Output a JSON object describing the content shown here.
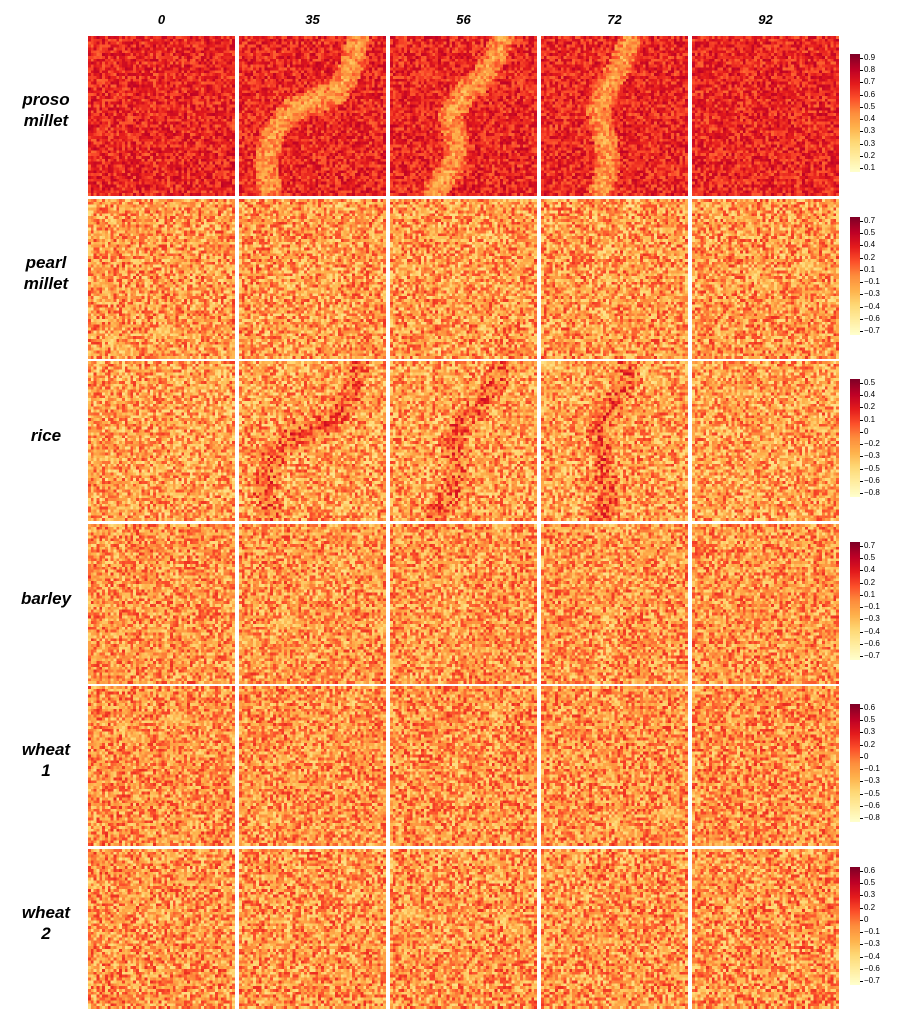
{
  "chart_data": {
    "type": "heatmap",
    "title": "",
    "colormap": [
      "#ffffcc",
      "#ffeda0",
      "#fed976",
      "#feb24c",
      "#fd8d3c",
      "#fc4e2a",
      "#e31a1c",
      "#bd0026",
      "#800026"
    ],
    "columns": [
      "0",
      "35",
      "56",
      "72",
      "92"
    ],
    "rows": [
      {
        "label_lines": [
          "proso",
          "millet"
        ],
        "legend_ticks": [
          "0.9",
          "0.8",
          "0.7",
          "0.6",
          "0.5",
          "0.4",
          "0.3",
          "0.3",
          "0.2",
          "0.1"
        ],
        "background_level": 0.72,
        "pattern_contrast": 0.3,
        "noise": 0.3
      },
      {
        "label_lines": [
          "pearl",
          "millet"
        ],
        "legend_ticks": [
          "0.7",
          "0.5",
          "0.4",
          "0.2",
          "0.1",
          "−0.1",
          "−0.3",
          "−0.4",
          "−0.6",
          "−0.7"
        ],
        "background_level": 0.45,
        "pattern_contrast": 0.03,
        "noise": 0.5
      },
      {
        "label_lines": [
          "rice"
        ],
        "legend_ticks": [
          "0.5",
          "0.4",
          "0.2",
          "0.1",
          "0",
          "−0.2",
          "−0.3",
          "−0.5",
          "−0.6",
          "−0.8"
        ],
        "background_level": 0.43,
        "pattern_contrast": -0.16,
        "noise": 0.5
      },
      {
        "label_lines": [
          "barley"
        ],
        "legend_ticks": [
          "0.7",
          "0.5",
          "0.4",
          "0.2",
          "0.1",
          "−0.1",
          "−0.3",
          "−0.4",
          "−0.6",
          "−0.7"
        ],
        "background_level": 0.46,
        "pattern_contrast": 0.03,
        "noise": 0.48
      },
      {
        "label_lines": [
          "wheat",
          "1"
        ],
        "legend_ticks": [
          "0.6",
          "0.5",
          "0.3",
          "0.2",
          "0",
          "−0.1",
          "−0.3",
          "−0.5",
          "−0.6",
          "−0.8"
        ],
        "background_level": 0.47,
        "pattern_contrast": 0.02,
        "noise": 0.48
      },
      {
        "label_lines": [
          "wheat",
          "2"
        ],
        "legend_ticks": [
          "0.6",
          "0.5",
          "0.3",
          "0.2",
          "0",
          "−0.1",
          "−0.3",
          "−0.4",
          "−0.6",
          "−0.7"
        ],
        "background_level": 0.46,
        "pattern_contrast": 0.02,
        "noise": 0.5
      }
    ]
  }
}
